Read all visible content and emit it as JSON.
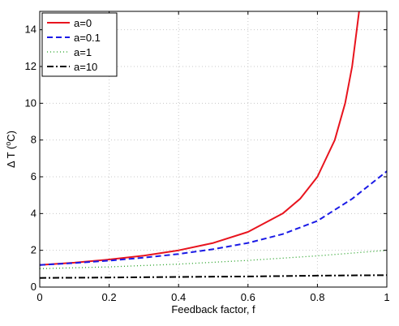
{
  "chart_data": {
    "type": "line",
    "xlabel": "Feedback factor, f",
    "ylabel_main": "Δ T (",
    "ylabel_sup": "o",
    "ylabel_tail": "C)",
    "xlim": [
      0,
      1
    ],
    "ylim": [
      0,
      15
    ],
    "xticks": [
      0,
      0.2,
      0.4,
      0.6,
      0.8,
      1
    ],
    "xtick_labels": [
      "0",
      "0.2",
      "0.4",
      "0.6",
      "0.8",
      "1"
    ],
    "yticks": [
      0,
      2,
      4,
      6,
      8,
      10,
      12,
      14
    ],
    "ytick_labels": [
      "0",
      "2",
      "4",
      "6",
      "8",
      "10",
      "12",
      "14"
    ],
    "grid": true,
    "legend_position": "top-left",
    "series": [
      {
        "name": "a=0",
        "color": "#e8141e",
        "style": "solid",
        "x": [
          0,
          0.1,
          0.2,
          0.3,
          0.4,
          0.5,
          0.6,
          0.7,
          0.75,
          0.8,
          0.85,
          0.88,
          0.9,
          0.92,
          0.93
        ],
        "y": [
          1.2,
          1.33,
          1.5,
          1.71,
          2.0,
          2.4,
          3.0,
          4.0,
          4.8,
          6.0,
          8.0,
          10.0,
          12.0,
          15.0,
          17.1
        ]
      },
      {
        "name": "a=0.1",
        "color": "#1a1ae6",
        "style": "dashed",
        "x": [
          0,
          0.1,
          0.2,
          0.3,
          0.4,
          0.5,
          0.6,
          0.7,
          0.8,
          0.9,
          1.0
        ],
        "y": [
          1.2,
          1.31,
          1.44,
          1.6,
          1.8,
          2.06,
          2.4,
          2.88,
          3.6,
          4.8,
          6.3
        ]
      },
      {
        "name": "a=1",
        "color": "#22a022",
        "style": "dotted",
        "x": [
          0,
          0.2,
          0.4,
          0.6,
          0.8,
          1.0
        ],
        "y": [
          1.0,
          1.1,
          1.25,
          1.45,
          1.7,
          2.0
        ]
      },
      {
        "name": "a=10",
        "color": "#000000",
        "style": "dashdot",
        "x": [
          0,
          0.2,
          0.4,
          0.6,
          0.8,
          1.0
        ],
        "y": [
          0.5,
          0.52,
          0.55,
          0.58,
          0.62,
          0.65
        ]
      }
    ]
  }
}
